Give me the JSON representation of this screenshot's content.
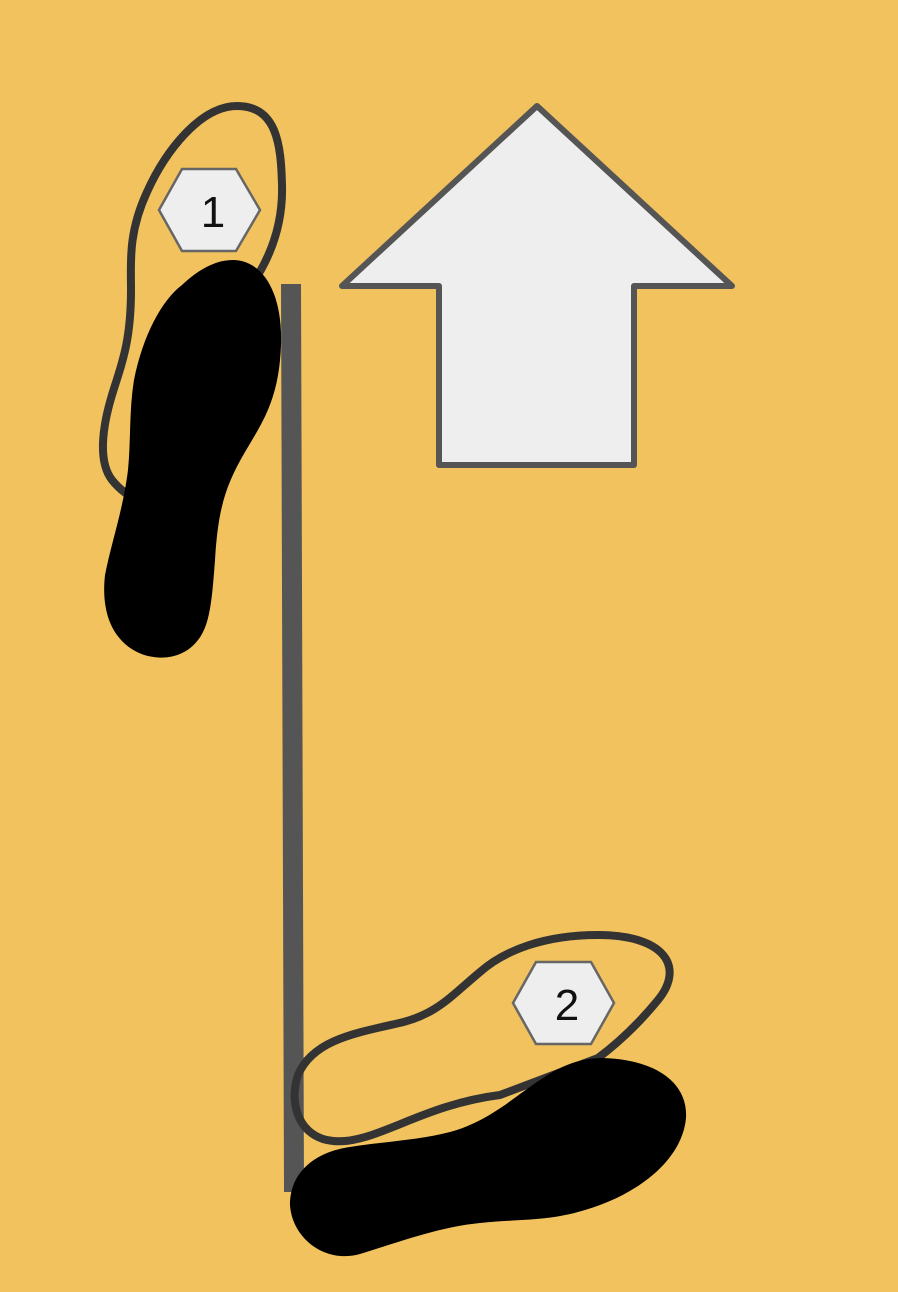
{
  "diagram": {
    "background_color": "#F2C25E",
    "direction": "up",
    "direction_icon": "up-arrow-icon",
    "line_color": "#555555",
    "arrow_fill": "#EEEEEE",
    "step_badge_fill": "#EEEEEE",
    "steps": [
      {
        "number": "1",
        "foot_icon": "footprint-icon",
        "state": "moved"
      },
      {
        "number": "2",
        "foot_icon": "footprint-icon",
        "state": "moved"
      }
    ]
  }
}
